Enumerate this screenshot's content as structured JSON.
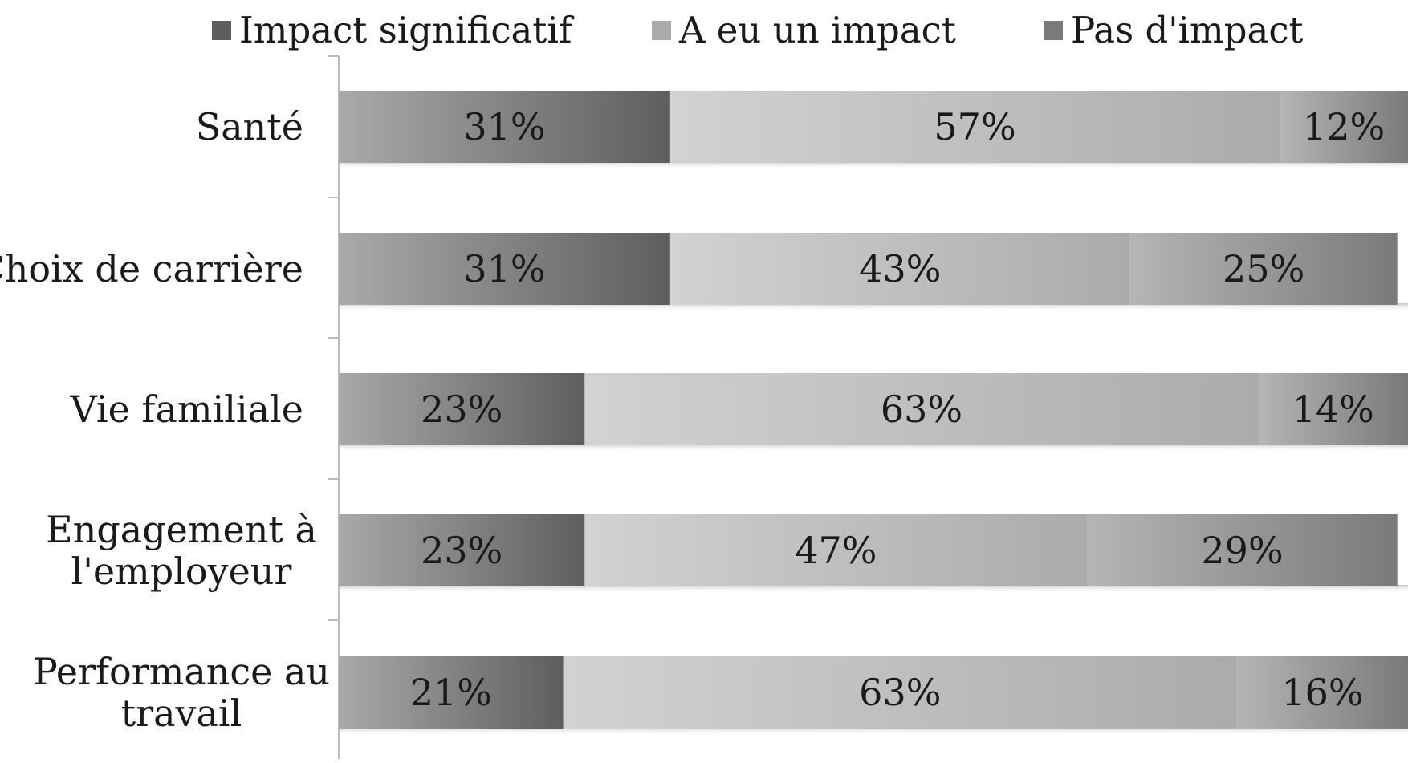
{
  "chart_data": {
    "type": "bar",
    "orientation": "horizontal",
    "stacked": true,
    "categories": [
      [
        "Santé"
      ],
      [
        "Choix de carrière"
      ],
      [
        "Vie familiale"
      ],
      [
        "Engagement à",
        "l'employeur"
      ],
      [
        "Performance au",
        "travail"
      ]
    ],
    "series": [
      {
        "name": "Impact significatif",
        "values": [
          31,
          31,
          23,
          23,
          21
        ],
        "labels": [
          "31%",
          "31%",
          "23%",
          "23%",
          "21%"
        ]
      },
      {
        "name": "A eu un impact",
        "values": [
          57,
          43,
          63,
          47,
          63
        ],
        "labels": [
          "57%",
          "43%",
          "63%",
          "47%",
          "63%"
        ]
      },
      {
        "name": "Pas d'impact",
        "values": [
          12,
          25,
          14,
          29,
          16
        ],
        "labels": [
          "12%",
          "25%",
          "14%",
          "29%",
          "16%"
        ]
      }
    ],
    "xlim": [
      0,
      100
    ],
    "legend_position": "top",
    "grid": false,
    "colors": {
      "Impact significatif": [
        "#a9a9a9",
        "#5e5e5e"
      ],
      "A eu un impact": [
        "#d2d2d2",
        "#ababab"
      ],
      "Pas d'impact": [
        "#b5b5b5",
        "#7a7a7a"
      ]
    },
    "title": "",
    "xlabel": "",
    "ylabel": ""
  }
}
